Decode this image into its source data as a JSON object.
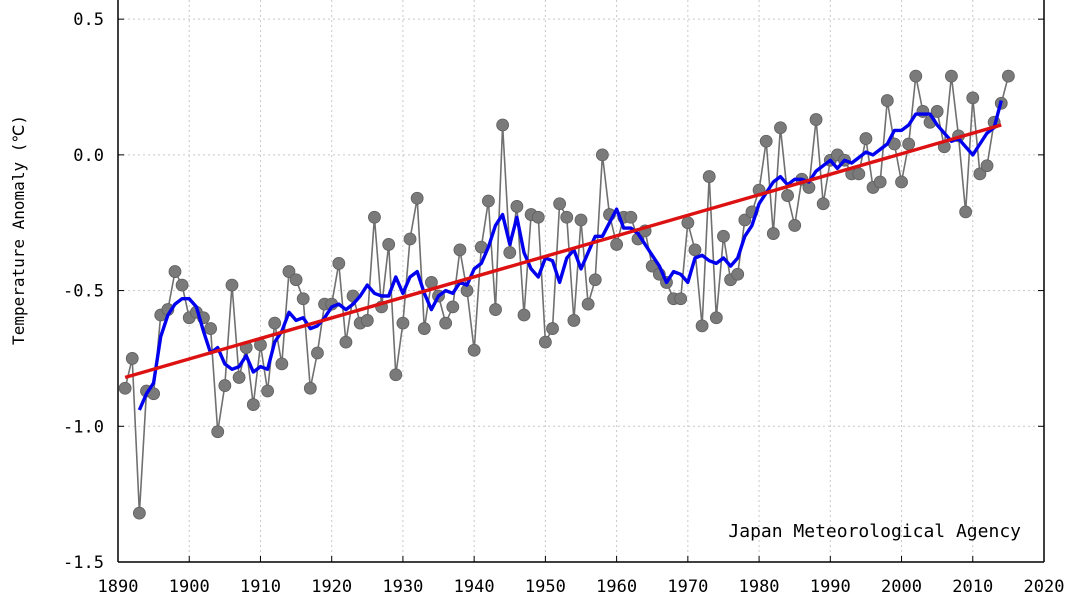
{
  "chart_data": {
    "type": "line",
    "ylabel": "Temperature Anomaly (℃)",
    "annotation": "Japan Meteorological Agency",
    "xlim": [
      1890,
      2020
    ],
    "ylim": [
      -1.5,
      0.6
    ],
    "x_ticks": [
      "1890",
      "1900",
      "1910",
      "1920",
      "1930",
      "1940",
      "1950",
      "1960",
      "1970",
      "1980",
      "1990",
      "2000",
      "2010",
      "2020"
    ],
    "y_ticks": [
      "0.5",
      "0.0",
      "-0.5",
      "-1.0",
      "-1.5"
    ],
    "grid": true,
    "colors": {
      "annual": "#707070",
      "points": "#7a7a7a",
      "moving_avg": "#0000ee",
      "trend": "#dd1111",
      "grid": "#c8c8c8"
    },
    "series": [
      {
        "role": "annual",
        "x": [
          1891,
          1892,
          1893,
          1894,
          1895,
          1896,
          1897,
          1898,
          1899,
          1900,
          1901,
          1902,
          1903,
          1904,
          1905,
          1906,
          1907,
          1908,
          1909,
          1910,
          1911,
          1912,
          1913,
          1914,
          1915,
          1916,
          1917,
          1918,
          1919,
          1920,
          1921,
          1922,
          1923,
          1924,
          1925,
          1926,
          1927,
          1928,
          1929,
          1930,
          1931,
          1932,
          1933,
          1934,
          1935,
          1936,
          1937,
          1938,
          1939,
          1940,
          1941,
          1942,
          1943,
          1944,
          1945,
          1946,
          1947,
          1948,
          1949,
          1950,
          1951,
          1952,
          1953,
          1954,
          1955,
          1956,
          1957,
          1958,
          1959,
          1960,
          1961,
          1962,
          1963,
          1964,
          1965,
          1966,
          1967,
          1968,
          1969,
          1970,
          1971,
          1972,
          1973,
          1974,
          1975,
          1976,
          1977,
          1978,
          1979,
          1980,
          1981,
          1982,
          1983,
          1984,
          1985,
          1986,
          1987,
          1988,
          1989,
          1990,
          1991,
          1992,
          1993,
          1994,
          1995,
          1996,
          1997,
          1998,
          1999,
          2000,
          2001,
          2002,
          2003,
          2004,
          2005,
          2006,
          2007,
          2008,
          2009,
          2010,
          2011,
          2012,
          2013,
          2014,
          2015
        ],
        "y": [
          -0.86,
          -0.75,
          -1.32,
          -0.87,
          -0.88,
          -0.59,
          -0.57,
          -0.43,
          -0.48,
          -0.6,
          -0.58,
          -0.6,
          -0.64,
          -1.02,
          -0.85,
          -0.48,
          -0.82,
          -0.71,
          -0.92,
          -0.7,
          -0.87,
          -0.62,
          -0.77,
          -0.43,
          -0.46,
          -0.53,
          -0.86,
          -0.73,
          -0.55,
          -0.55,
          -0.4,
          -0.69,
          -0.52,
          -0.62,
          -0.61,
          -0.23,
          -0.56,
          -0.33,
          -0.81,
          -0.62,
          -0.31,
          -0.16,
          -0.64,
          -0.47,
          -0.52,
          -0.62,
          -0.56,
          -0.35,
          -0.5,
          -0.72,
          -0.34,
          -0.17,
          -0.57,
          0.11,
          -0.36,
          -0.19,
          -0.59,
          -0.22,
          -0.23,
          -0.69,
          -0.64,
          -0.18,
          -0.23,
          -0.61,
          -0.24,
          -0.55,
          -0.46,
          0.0,
          -0.22,
          -0.33,
          -0.23,
          -0.23,
          -0.31,
          -0.28,
          -0.41,
          -0.44,
          -0.47,
          -0.53,
          -0.53,
          -0.25,
          -0.35,
          -0.63,
          -0.08,
          -0.6,
          -0.3,
          -0.46,
          -0.44,
          -0.24,
          -0.21,
          -0.13,
          0.05,
          -0.29,
          0.1,
          -0.15,
          -0.26,
          -0.09,
          -0.12,
          0.13,
          -0.18,
          -0.02,
          0.0,
          -0.02,
          -0.07,
          -0.07,
          0.06,
          -0.12,
          -0.1,
          0.2,
          0.04,
          -0.1,
          0.04,
          0.29,
          0.16,
          0.12,
          0.16,
          0.03,
          0.29,
          0.07,
          -0.21,
          0.21,
          -0.07,
          -0.04,
          0.12,
          0.19,
          0.29
        ]
      },
      {
        "role": "five_year_moving_average",
        "x": [
          1893,
          1894,
          1895,
          1896,
          1897,
          1898,
          1899,
          1900,
          1901,
          1902,
          1903,
          1904,
          1905,
          1906,
          1907,
          1908,
          1909,
          1910,
          1911,
          1912,
          1913,
          1914,
          1915,
          1916,
          1917,
          1918,
          1919,
          1920,
          1921,
          1922,
          1923,
          1924,
          1925,
          1926,
          1927,
          1928,
          1929,
          1930,
          1931,
          1932,
          1933,
          1934,
          1935,
          1936,
          1937,
          1938,
          1939,
          1940,
          1941,
          1942,
          1943,
          1944,
          1945,
          1946,
          1947,
          1948,
          1949,
          1950,
          1951,
          1952,
          1953,
          1954,
          1955,
          1956,
          1957,
          1958,
          1959,
          1960,
          1961,
          1962,
          1963,
          1964,
          1965,
          1966,
          1967,
          1968,
          1969,
          1970,
          1971,
          1972,
          1973,
          1974,
          1975,
          1976,
          1977,
          1978,
          1979,
          1980,
          1981,
          1982,
          1983,
          1984,
          1985,
          1986,
          1987,
          1988,
          1989,
          1990,
          1991,
          1992,
          1993,
          1994,
          1995,
          1996,
          1997,
          1998,
          1999,
          2000,
          2001,
          2002,
          2003,
          2004,
          2005,
          2006,
          2007,
          2008,
          2009,
          2010,
          2011,
          2012,
          2013,
          2014
        ],
        "y": [
          -0.94,
          -0.88,
          -0.84,
          -0.67,
          -0.59,
          -0.55,
          -0.53,
          -0.53,
          -0.56,
          -0.65,
          -0.73,
          -0.71,
          -0.77,
          -0.79,
          -0.78,
          -0.74,
          -0.8,
          -0.78,
          -0.79,
          -0.69,
          -0.65,
          -0.58,
          -0.61,
          -0.6,
          -0.64,
          -0.63,
          -0.6,
          -0.56,
          -0.55,
          -0.57,
          -0.55,
          -0.52,
          -0.48,
          -0.51,
          -0.52,
          -0.52,
          -0.45,
          -0.51,
          -0.45,
          -0.43,
          -0.51,
          -0.57,
          -0.52,
          -0.5,
          -0.51,
          -0.47,
          -0.48,
          -0.42,
          -0.4,
          -0.34,
          -0.26,
          -0.22,
          -0.33,
          -0.23,
          -0.36,
          -0.42,
          -0.45,
          -0.38,
          -0.39,
          -0.47,
          -0.38,
          -0.35,
          -0.42,
          -0.36,
          -0.3,
          -0.3,
          -0.25,
          -0.2,
          -0.27,
          -0.27,
          -0.29,
          -0.33,
          -0.37,
          -0.41,
          -0.47,
          -0.43,
          -0.44,
          -0.47,
          -0.38,
          -0.37,
          -0.39,
          -0.4,
          -0.38,
          -0.41,
          -0.38,
          -0.3,
          -0.26,
          -0.18,
          -0.14,
          -0.1,
          -0.08,
          -0.11,
          -0.09,
          -0.09,
          -0.1,
          -0.06,
          -0.04,
          -0.02,
          -0.05,
          -0.02,
          -0.03,
          -0.01,
          0.01,
          0.0,
          0.02,
          0.04,
          0.09,
          0.09,
          0.11,
          0.15,
          0.15,
          0.15,
          0.11,
          0.08,
          0.05,
          0.06,
          0.03,
          0.0,
          0.04,
          0.08,
          0.1,
          0.2
        ]
      },
      {
        "role": "linear_trend",
        "x": [
          1891,
          2014
        ],
        "y": [
          -0.82,
          0.11
        ]
      }
    ]
  }
}
